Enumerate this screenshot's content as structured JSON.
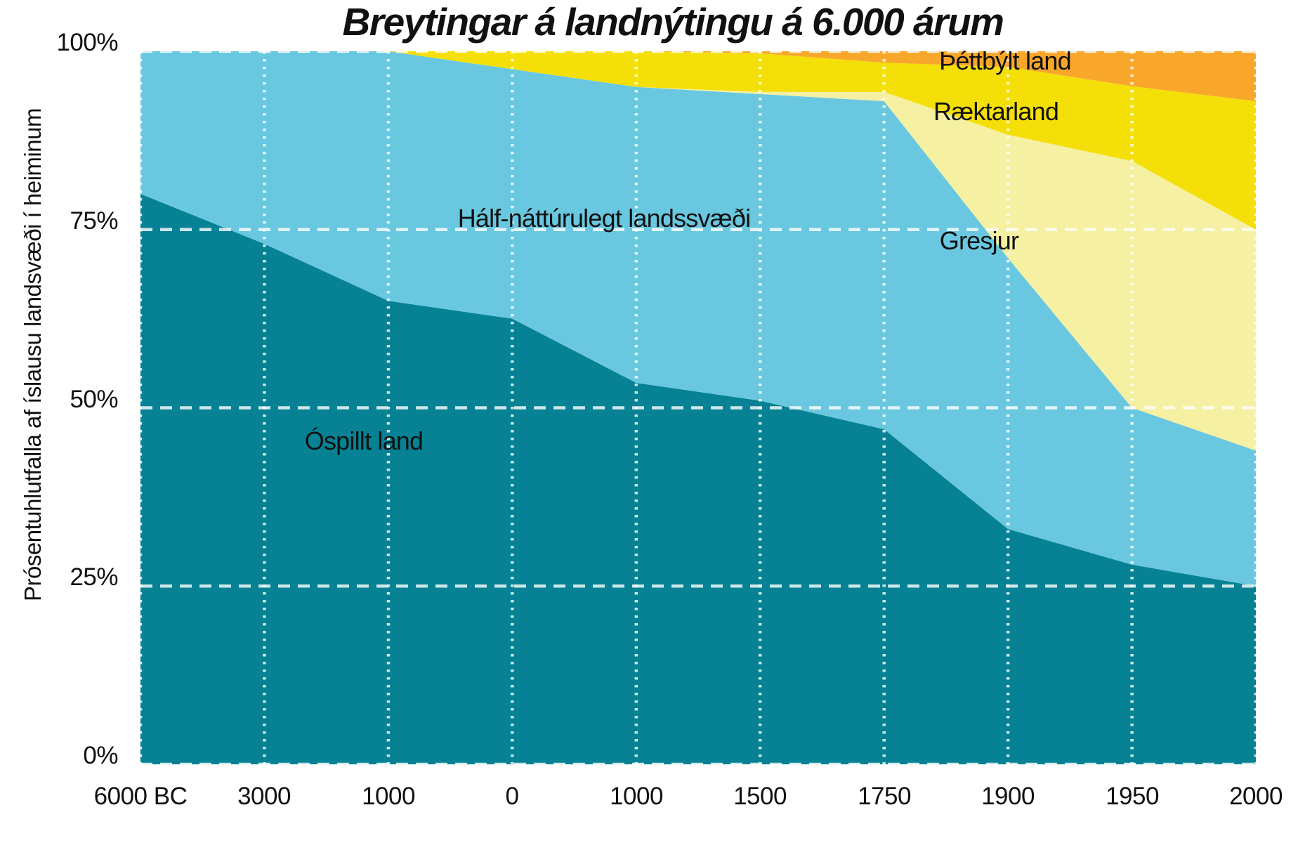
{
  "chart_data": {
    "type": "area",
    "stacked": true,
    "title": "Breytingar á landnýtingu á 6.000 árum",
    "ylabel": "Prósentuhlutfalla af íslausu landsvæði í heiminum",
    "categories": [
      "6000 BC",
      "3000",
      "1000",
      "0",
      "1000",
      "1500",
      "1750",
      "1900",
      "1950",
      "2000"
    ],
    "y_tick_labels": [
      "0%",
      "25%",
      "50%",
      "75%",
      "100%"
    ],
    "ylim": [
      0,
      100
    ],
    "grid": true,
    "gridline_color": "rgba(255,255,255,0.8)",
    "legend_position": "labels-inside-areas",
    "series": [
      {
        "name": "ospillt-land",
        "label": "Óspillt land",
        "color": "#068294",
        "values": [
          80,
          73,
          65,
          62.5,
          53.5,
          51,
          47,
          33,
          28,
          25
        ]
      },
      {
        "name": "half-natturulegt",
        "label": "Hálf-náttúrulegt landssvæði",
        "color": "#69c8e0",
        "values": [
          20,
          27,
          35,
          35,
          41.5,
          43,
          46,
          38,
          22,
          19
        ]
      },
      {
        "name": "gresjur",
        "label": "Gresjur",
        "color": "#f5f0a2",
        "values": [
          0,
          0,
          0,
          0,
          0,
          0.3,
          1.3,
          17.3,
          34.6,
          31
        ]
      },
      {
        "name": "raektarland",
        "label": "Ræktarland",
        "color": "#f4df09",
        "values": [
          0,
          0,
          0,
          2.5,
          5,
          5.4,
          4.1,
          9.5,
          10.5,
          18
        ]
      },
      {
        "name": "thettbylt-land",
        "label": "Þéttbýlt land",
        "color": "#f9a72b",
        "values": [
          0,
          0,
          0,
          0,
          0,
          0.3,
          1.6,
          2.2,
          4.9,
          7
        ]
      }
    ]
  }
}
